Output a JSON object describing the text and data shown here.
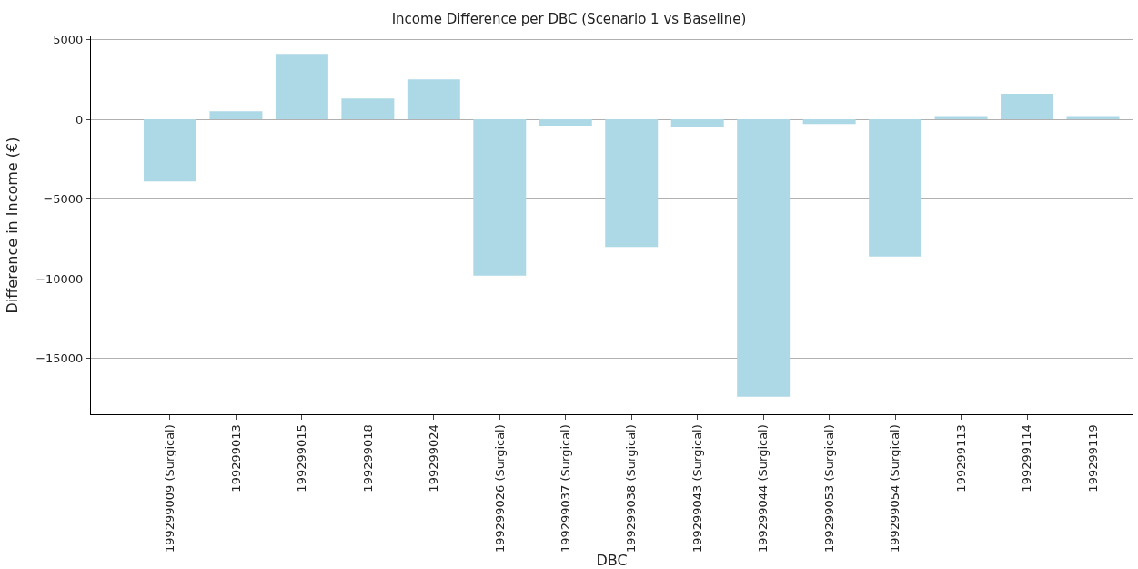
{
  "chart_data": {
    "type": "bar",
    "title": "Income Difference per DBC (Scenario 1 vs Baseline)",
    "xlabel": "DBC",
    "ylabel": "Difference in Income (€)",
    "categories": [
      "199299009 (Surgical)",
      "199299013",
      "199299015",
      "199299018",
      "199299024",
      "199299026 (Surgical)",
      "199299037 (Surgical)",
      "199299038 (Surgical)",
      "199299043 (Surgical)",
      "199299044 (Surgical)",
      "199299053 (Surgical)",
      "199299054 (Surgical)",
      "199299113",
      "199299114",
      "199299119"
    ],
    "values": [
      -3900,
      500,
      4100,
      1300,
      2500,
      -9800,
      -400,
      -8000,
      -500,
      -17400,
      -300,
      -8600,
      200,
      1600,
      200
    ],
    "color": "#add8e6",
    "ylim": [
      -18500,
      5200
    ],
    "yticks": [
      {
        "value": -15000,
        "label": "−15000"
      },
      {
        "value": -10000,
        "label": "−10000"
      },
      {
        "value": -5000,
        "label": "−5000"
      },
      0,
      5000
    ],
    "grid": "y"
  }
}
